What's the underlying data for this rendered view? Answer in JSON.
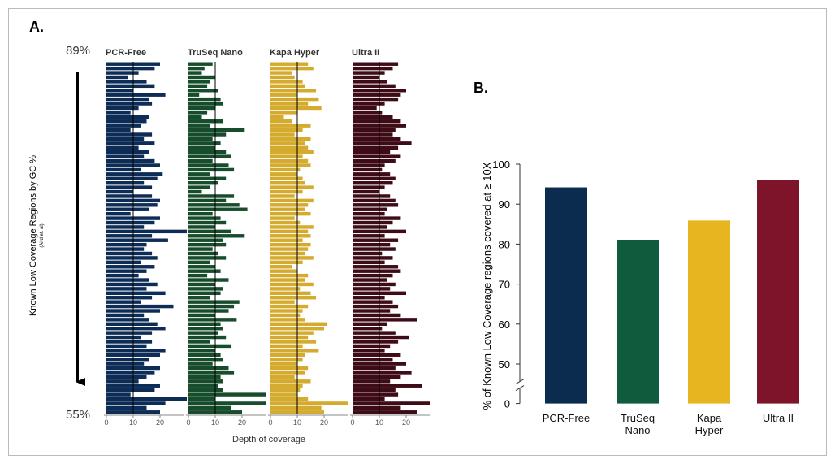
{
  "chart_data": [
    {
      "type": "hbar",
      "panel_label": "A.",
      "ylabel": "Known Low Coverage Regions by GC %",
      "ylabel_note": "(Aird et. al)",
      "y_top_label": "89%",
      "y_bottom_label": "55%",
      "xlabel": "Depth of coverage",
      "xlim": [
        0,
        29
      ],
      "xticks": [
        0,
        10,
        20
      ],
      "ref_line": 10,
      "series": [
        {
          "name": "PCR-Free",
          "color": "#0d2c56",
          "values": [
            20,
            18,
            12,
            8,
            15,
            18,
            10,
            22,
            16,
            17,
            12,
            9,
            16,
            15,
            13,
            9,
            17,
            14,
            18,
            12,
            16,
            14,
            18,
            20,
            13,
            21,
            19,
            14,
            17,
            10,
            17,
            20,
            19,
            16,
            9,
            20,
            18,
            14,
            30,
            17,
            23,
            15,
            14,
            17,
            19,
            13,
            18,
            15,
            12,
            16,
            19,
            15,
            22,
            17,
            13,
            25,
            20,
            14,
            16,
            19,
            22,
            17,
            13,
            17,
            15,
            22,
            20,
            16,
            14,
            20,
            18,
            15,
            12,
            20,
            18,
            9,
            30,
            22,
            15,
            20
          ]
        },
        {
          "name": "TruSeq Nano",
          "color": "#174d2c",
          "values": [
            9,
            6,
            5,
            10,
            8,
            7,
            11,
            4,
            12,
            13,
            10,
            7,
            5,
            13,
            8,
            21,
            14,
            9,
            12,
            10,
            14,
            16,
            9,
            15,
            17,
            8,
            14,
            11,
            8,
            5,
            17,
            14,
            19,
            22,
            9,
            12,
            14,
            10,
            16,
            21,
            13,
            14,
            9,
            11,
            14,
            8,
            10,
            12,
            7,
            15,
            10,
            13,
            12,
            8,
            19,
            17,
            15,
            10,
            18,
            12,
            13,
            11,
            14,
            8,
            16,
            10,
            12,
            13,
            9,
            15,
            17,
            12,
            13,
            11,
            13,
            29,
            10,
            29,
            16,
            20
          ]
        },
        {
          "name": "Kapa Hyper",
          "color": "#d4ab2e",
          "values": [
            14,
            16,
            8,
            9,
            12,
            13,
            17,
            10,
            18,
            14,
            19,
            10,
            5,
            8,
            15,
            12,
            9,
            15,
            13,
            14,
            16,
            12,
            14,
            15,
            11,
            10,
            12,
            13,
            16,
            12,
            9,
            16,
            14,
            13,
            15,
            9,
            11,
            16,
            14,
            15,
            12,
            15,
            14,
            13,
            16,
            12,
            8,
            10,
            14,
            13,
            16,
            11,
            15,
            17,
            9,
            14,
            12,
            11,
            13,
            21,
            20,
            16,
            14,
            17,
            12,
            18,
            13,
            12,
            10,
            14,
            13,
            9,
            15,
            12,
            11,
            10,
            14,
            29,
            19,
            20
          ]
        },
        {
          "name": "Ultra II",
          "color": "#3d0c16",
          "values": [
            17,
            15,
            12,
            10,
            13,
            16,
            20,
            18,
            17,
            12,
            9,
            11,
            15,
            18,
            20,
            16,
            15,
            18,
            22,
            17,
            14,
            18,
            16,
            12,
            11,
            14,
            16,
            15,
            12,
            10,
            14,
            16,
            17,
            13,
            12,
            18,
            15,
            13,
            20,
            12,
            17,
            14,
            16,
            11,
            15,
            12,
            17,
            18,
            15,
            13,
            16,
            14,
            20,
            12,
            15,
            17,
            14,
            18,
            24,
            13,
            11,
            16,
            21,
            17,
            14,
            12,
            18,
            15,
            20,
            16,
            22,
            18,
            14,
            26,
            16,
            17,
            12,
            29,
            18,
            24
          ]
        }
      ]
    },
    {
      "type": "bar",
      "panel_label": "B.",
      "ylabel": "% of Known Low Coverage regions covered at ≥ 10X",
      "categories": [
        "PCR-Free",
        "TruSeq\nNano",
        "Kapa\nHyper",
        "Ultra II"
      ],
      "values": [
        94.2,
        81.1,
        85.9,
        96.1
      ],
      "colors": [
        "#0c2c4f",
        "#105b3d",
        "#e6b520",
        "#7e1429"
      ],
      "ylim": [
        45,
        100
      ],
      "yticks": [
        50,
        60,
        70,
        80,
        90,
        100
      ],
      "break_tick": 0
    }
  ]
}
